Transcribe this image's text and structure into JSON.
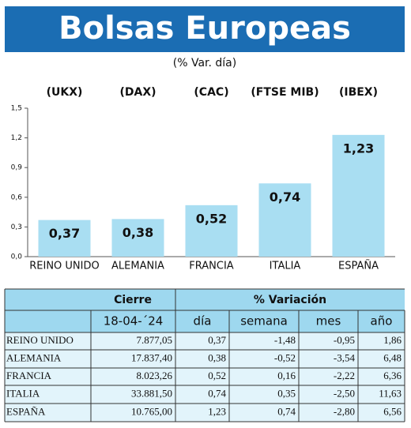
{
  "chart_data": {
    "type": "bar",
    "title": "Bolsas Europeas",
    "subtitle": "(% Var. día)",
    "categories": [
      "REINO UNIDO",
      "ALEMANIA",
      "FRANCIA",
      "ITALIA",
      "ESPAÑA"
    ],
    "indices": [
      "(UKX)",
      "(DAX)",
      "(CAC)",
      "(FTSE MIB)",
      "(IBEX)"
    ],
    "values": [
      0.37,
      0.38,
      0.52,
      0.74,
      1.23
    ],
    "value_labels": [
      "0,37",
      "0,38",
      "0,52",
      "0,74",
      "1,23"
    ],
    "color": "#a9def2",
    "ylim": [
      0,
      1.5
    ],
    "yticks": [
      {
        "value": 0,
        "label": "0,0"
      },
      {
        "value": 0.3,
        "label": "0,3"
      },
      {
        "value": 0.6,
        "label": "0,6"
      },
      {
        "value": 0.9,
        "label": "0,9"
      },
      {
        "value": 1.2,
        "label": "1,2"
      },
      {
        "value": 1.5,
        "label": "1,5"
      }
    ]
  },
  "table": {
    "header": [
      "Cierre",
      "% Variación"
    ],
    "subheader": [
      "18-04-´24",
      "día",
      "semana",
      "mes",
      "año"
    ],
    "rows": [
      [
        "REINO UNIDO",
        "7.877,05",
        "0,37",
        "-1,48",
        "-0,95",
        "1,86"
      ],
      [
        "ALEMANIA",
        "17.837,40",
        "0,38",
        "-0,52",
        "-3,54",
        "6,48"
      ],
      [
        "FRANCIA",
        "8.023,26",
        "0,52",
        "0,16",
        "-2,22",
        "6,36"
      ],
      [
        "ITALIA",
        "33.881,50",
        "0,74",
        "0,35",
        "-2,50",
        "11,63"
      ],
      [
        "ESPAÑA",
        "10.765,00",
        "1,23",
        "0,74",
        "-2,80",
        "6,56"
      ]
    ]
  }
}
